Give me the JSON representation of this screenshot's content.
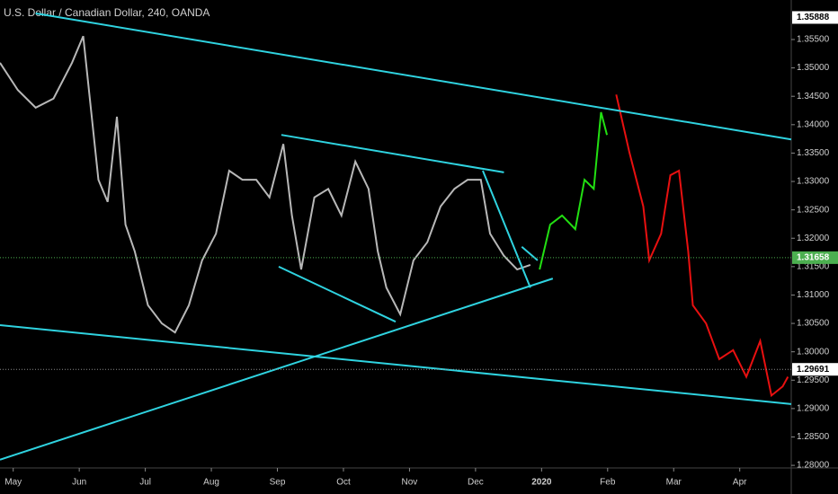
{
  "chart_data": {
    "type": "line",
    "title": "U.S. Dollar / Canadian Dollar, 240, OANDA",
    "background": "#000000",
    "xlim": [
      -0.2,
      11.78
    ],
    "xticks": [
      {
        "value": 0,
        "label": "May"
      },
      {
        "value": 1,
        "label": "Jun"
      },
      {
        "value": 2,
        "label": "Jul"
      },
      {
        "value": 3,
        "label": "Aug"
      },
      {
        "value": 4,
        "label": "Sep"
      },
      {
        "value": 5,
        "label": "Oct"
      },
      {
        "value": 6,
        "label": "Nov"
      },
      {
        "value": 7,
        "label": "Dec"
      },
      {
        "value": 8,
        "label": "2020"
      },
      {
        "value": 9,
        "label": "Feb"
      },
      {
        "value": 10,
        "label": "Mar"
      },
      {
        "value": 11,
        "label": "Apr"
      }
    ],
    "ylim": [
      1.2797,
      1.36196
    ],
    "yticks": [
      {
        "value": 1.28,
        "label": "1.28000"
      },
      {
        "value": 1.285,
        "label": "1.28500"
      },
      {
        "value": 1.29,
        "label": "1.29000"
      },
      {
        "value": 1.295,
        "label": "1.29500"
      },
      {
        "value": 1.3,
        "label": "1.30000"
      },
      {
        "value": 1.305,
        "label": "1.30500"
      },
      {
        "value": 1.31,
        "label": "1.31000"
      },
      {
        "value": 1.315,
        "label": "1.31500"
      },
      {
        "value": 1.32,
        "label": "1.32000"
      },
      {
        "value": 1.325,
        "label": "1.32500"
      },
      {
        "value": 1.33,
        "label": "1.33000"
      },
      {
        "value": 1.335,
        "label": "1.33500"
      },
      {
        "value": 1.34,
        "label": "1.34000"
      },
      {
        "value": 1.345,
        "label": "1.34500"
      },
      {
        "value": 1.35,
        "label": "1.35000"
      },
      {
        "value": 1.355,
        "label": "1.35500"
      }
    ],
    "series": [
      {
        "color": "#b8b8b8",
        "x": [
          -0.2,
          0.07,
          0.34,
          0.61,
          0.89,
          1.06,
          1.16,
          1.29,
          1.43,
          1.57,
          1.7,
          1.84,
          2.04,
          2.25,
          2.45,
          2.66,
          2.86,
          3.07,
          3.27,
          3.47,
          3.68,
          3.88,
          4.09,
          4.22,
          4.36,
          4.56,
          4.77,
          4.97,
          5.18,
          5.38,
          5.52,
          5.65,
          5.86,
          6.06,
          6.27,
          6.47,
          6.68,
          6.88,
          7.08,
          7.22,
          7.43,
          7.63,
          7.83
        ],
        "values": [
          1.3509,
          1.3461,
          1.343,
          1.3446,
          1.3509,
          1.3556,
          1.3446,
          1.3303,
          1.3264,
          1.3414,
          1.3224,
          1.3177,
          1.3082,
          1.305,
          1.3034,
          1.3082,
          1.3161,
          1.3208,
          1.3319,
          1.3303,
          1.3303,
          1.3272,
          1.3366,
          1.324,
          1.3145,
          1.3272,
          1.3287,
          1.324,
          1.3335,
          1.3287,
          1.3177,
          1.3113,
          1.3066,
          1.3161,
          1.3193,
          1.3256,
          1.3287,
          1.3303,
          1.3303,
          1.3208,
          1.3169,
          1.3145,
          1.3153
        ]
      },
      {
        "color": "#22e012",
        "x": [
          7.97,
          8.13,
          8.31,
          8.51,
          8.65,
          8.79,
          8.9,
          8.99
        ],
        "values": [
          1.3145,
          1.3224,
          1.324,
          1.3216,
          1.3303,
          1.3287,
          1.3422,
          1.3382
        ]
      },
      {
        "color": "#e81010",
        "x": [
          9.13,
          9.33,
          9.54,
          9.63,
          9.81,
          9.95,
          10.08,
          10.22,
          10.29,
          10.49,
          10.69,
          10.9,
          11.1,
          11.31,
          11.48,
          11.65,
          11.73
        ],
        "values": [
          1.3453,
          1.3351,
          1.3256,
          1.3161,
          1.3208,
          1.3311,
          1.3319,
          1.3177,
          1.3082,
          1.305,
          1.2987,
          1.3003,
          1.2956,
          1.3019,
          1.2923,
          1.2939,
          1.2956
        ]
      }
    ],
    "trendline_color": "#2fd3e0",
    "trendlines": [
      {
        "x": [
          0.34,
          11.78
        ],
        "values": [
          1.3596,
          1.3374
        ]
      },
      {
        "x": [
          -0.2,
          11.78
        ],
        "values": [
          1.3047,
          1.2908
        ]
      },
      {
        "x": [
          -0.2,
          8.17
        ],
        "values": [
          1.281,
          1.3129
        ]
      },
      {
        "x": [
          4.06,
          7.43
        ],
        "values": [
          1.3382,
          1.3316
        ]
      },
      {
        "x": [
          4.02,
          5.79
        ],
        "values": [
          1.315,
          1.3053
        ]
      },
      {
        "x": [
          7.11,
          7.83
        ],
        "values": [
          1.3319,
          1.3113
        ]
      },
      {
        "x": [
          7.7,
          7.94
        ],
        "values": [
          1.3185,
          1.3161
        ]
      }
    ],
    "price_lines": [
      {
        "value": 1.31658,
        "color": "#4caf50"
      },
      {
        "value": 1.29691,
        "color": "#8a8a8a"
      }
    ],
    "price_labels": [
      1.35888
    ]
  }
}
